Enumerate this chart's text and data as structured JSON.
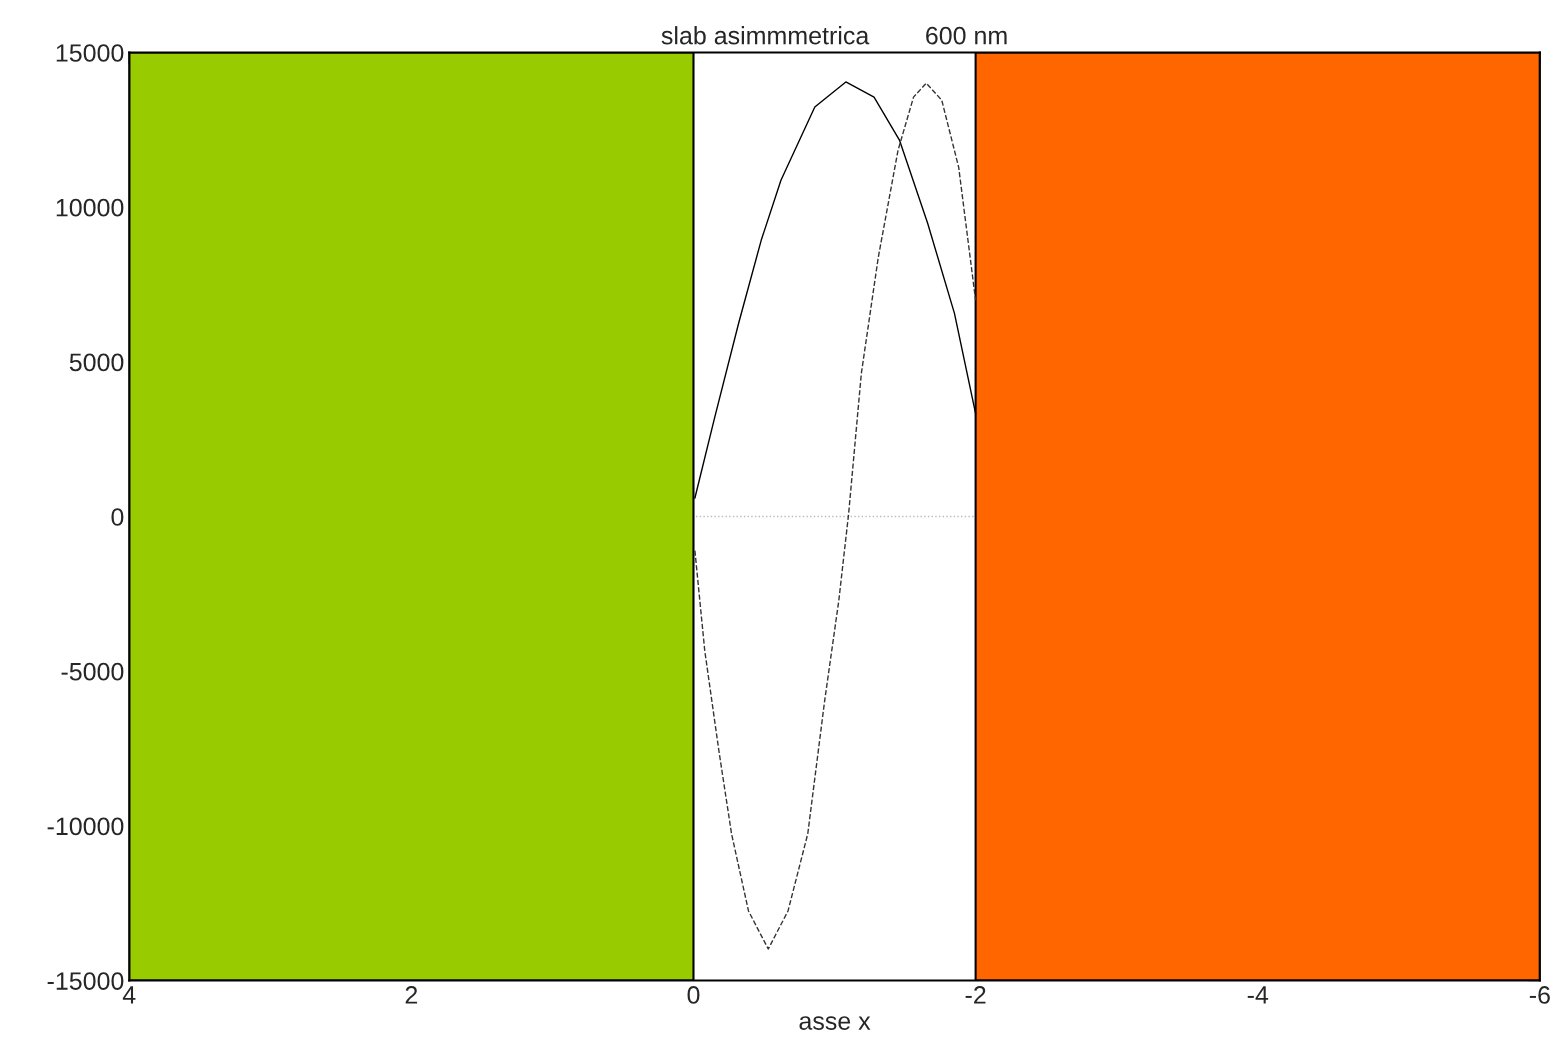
{
  "chart_data": {
    "type": "line",
    "title": "slab asimmmetrica        600 nm",
    "xlabel": "asse x",
    "xlim": [
      4,
      -6
    ],
    "xticks": [
      4,
      2,
      0,
      -2,
      -4,
      -6
    ],
    "ylim": [
      -15000,
      15000
    ],
    "yticks": [
      -15000,
      -10000,
      -5000,
      0,
      5000,
      10000,
      15000
    ],
    "grid": false,
    "marker": "none",
    "series": [
      {
        "color": "#000000",
        "line_style": "solid",
        "x": [
          -0.01,
          -0.15,
          -0.32,
          -0.48,
          -0.62,
          -0.86,
          -1.08,
          -1.28,
          -1.46,
          -1.66,
          -1.85,
          -2.0
        ],
        "values": [
          600,
          3200,
          6250,
          8930,
          10870,
          13240,
          14050,
          13560,
          12170,
          9480,
          6570,
          3330
        ]
      },
      {
        "color": "#333333",
        "line_style": "dashed",
        "x": [
          -0.01,
          -0.08,
          -0.18,
          -0.27,
          -0.39,
          -0.53,
          -0.67,
          -0.81,
          -0.93,
          -1.03,
          -1.1,
          -1.19,
          -1.31,
          -1.45,
          -1.56,
          -1.65,
          -1.76,
          -1.88,
          -2.0
        ],
        "values": [
          -1100,
          -4340,
          -7570,
          -10260,
          -12750,
          -13980,
          -12750,
          -10260,
          -5950,
          -2720,
          100,
          4630,
          8380,
          11840,
          13560,
          14010,
          13460,
          11290,
          6990
        ]
      }
    ],
    "bands": [
      {
        "axis": "x",
        "from": 4,
        "to": 0,
        "color": "#99cc00"
      },
      {
        "axis": "x",
        "from": -2,
        "to": -6,
        "color": "#ff6600"
      }
    ],
    "ref_lines": [
      {
        "axis": "y",
        "value": 0,
        "color": "#bbbbbb",
        "line_style": "dotted"
      }
    ]
  }
}
